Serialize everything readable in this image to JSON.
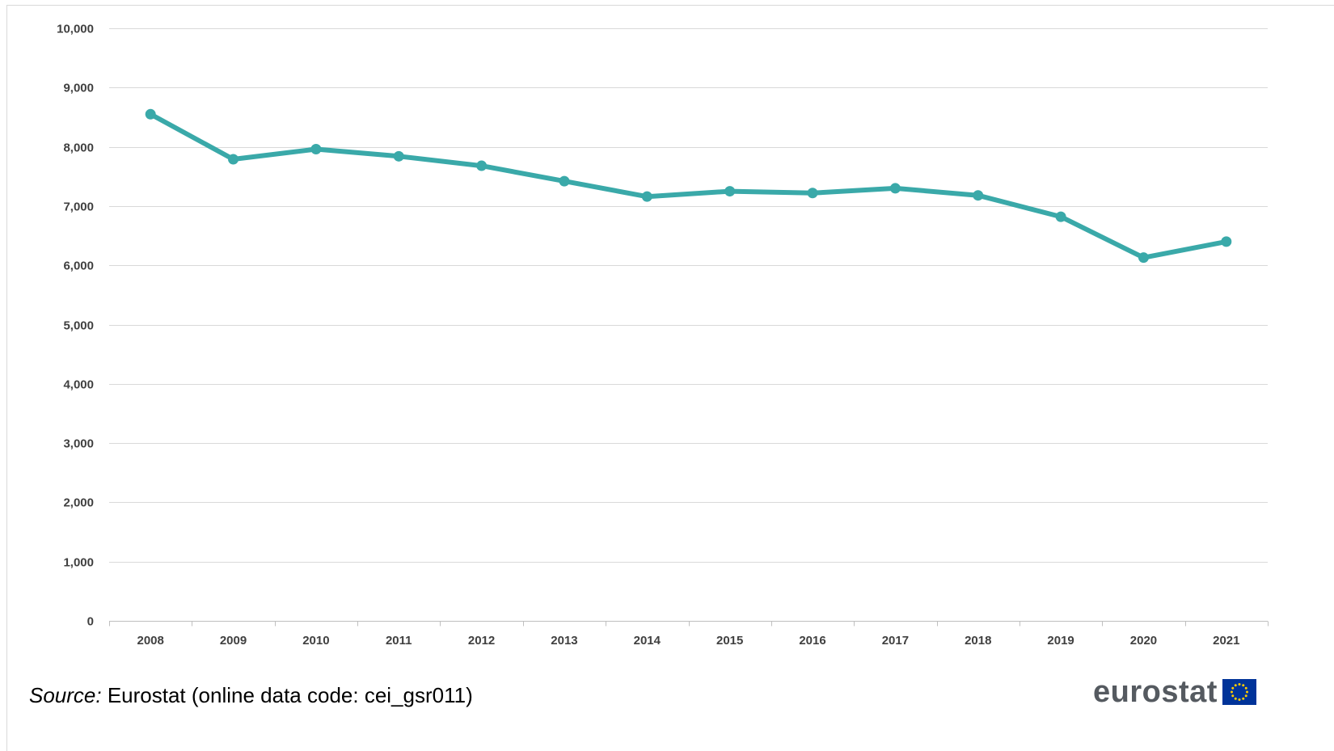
{
  "chart_data": {
    "type": "line",
    "title": "",
    "xlabel": "",
    "ylabel": "",
    "x": [
      "2008",
      "2009",
      "2010",
      "2011",
      "2012",
      "2013",
      "2014",
      "2015",
      "2016",
      "2017",
      "2018",
      "2019",
      "2020",
      "2021"
    ],
    "series": [
      {
        "values": [
          8550,
          7790,
          7960,
          7840,
          7680,
          7420,
          7160,
          7250,
          7220,
          7300,
          7180,
          6820,
          6130,
          6400
        ]
      }
    ],
    "ylim": [
      0,
      10000
    ],
    "yticks": [
      0,
      1000,
      2000,
      3000,
      4000,
      5000,
      6000,
      7000,
      8000,
      9000,
      10000
    ],
    "ytick_labels": [
      "0",
      "1,000",
      "2,000",
      "3,000",
      "4,000",
      "5,000",
      "6,000",
      "7,000",
      "8,000",
      "9,000",
      "10,000"
    ],
    "grid": "horizontal",
    "legend": "none",
    "colors": {
      "line": "#3aa9a9",
      "gridline": "#d9d9d9",
      "axis": "#bfbfbf",
      "tick_text": "#404040"
    }
  },
  "source": {
    "label": "Source:",
    "text": " Eurostat (online data code: cei_gsr011)"
  },
  "logo": {
    "text": "eurostat",
    "icon": "eu-flag-icon",
    "flag_color": "#003399",
    "star_color": "#ffcc00"
  }
}
